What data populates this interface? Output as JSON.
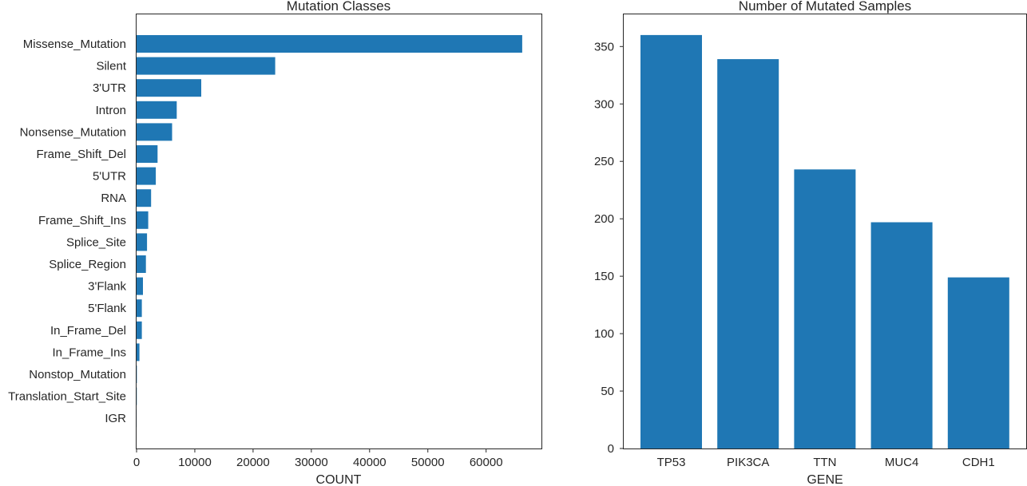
{
  "chart_data": [
    {
      "type": "bar",
      "orientation": "horizontal",
      "title": "Mutation Classes",
      "xlabel": "COUNT",
      "ylabel": "",
      "categories": [
        "Missense_Mutation",
        "Silent",
        "3'UTR",
        "Intron",
        "Nonsense_Mutation",
        "Frame_Shift_Del",
        "5'UTR",
        "RNA",
        "Frame_Shift_Ins",
        "Splice_Site",
        "Splice_Region",
        "3'Flank",
        "5'Flank",
        "In_Frame_Del",
        "In_Frame_Ins",
        "Nonstop_Mutation",
        "Translation_Start_Site",
        "IGR"
      ],
      "values": [
        66200,
        23800,
        11100,
        6900,
        6100,
        3600,
        3300,
        2500,
        2000,
        1800,
        1600,
        1100,
        900,
        900,
        500,
        60,
        40,
        10
      ],
      "xlim": [
        0,
        69500
      ],
      "xticks": [
        0,
        10000,
        20000,
        30000,
        40000,
        50000,
        60000
      ],
      "color": "#1f77b4",
      "grid": false
    },
    {
      "type": "bar",
      "orientation": "vertical",
      "title": "Number of Mutated Samples",
      "xlabel": "GENE",
      "ylabel": "",
      "categories": [
        "TP53",
        "PIK3CA",
        "TTN",
        "MUC4",
        "CDH1"
      ],
      "values": [
        360,
        339,
        243,
        197,
        149
      ],
      "ylim": [
        0,
        378
      ],
      "yticks": [
        0,
        50,
        100,
        150,
        200,
        250,
        300,
        350
      ],
      "color": "#1f77b4",
      "grid": false
    }
  ]
}
